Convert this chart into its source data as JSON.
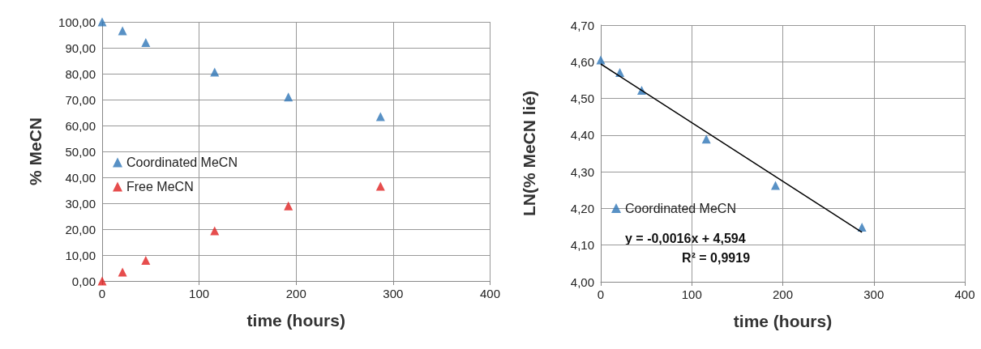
{
  "chart_data": [
    {
      "type": "scatter",
      "xlabel": "time (hours)",
      "ylabel": "% MeCN",
      "xlim": [
        0,
        400
      ],
      "xticks": [
        0,
        100,
        200,
        300,
        400
      ],
      "ylim": [
        0,
        100
      ],
      "yticks": [
        {
          "value": 0,
          "label": "0,00"
        },
        {
          "value": 10,
          "label": "10,00"
        },
        {
          "value": 20,
          "label": "20,00"
        },
        {
          "value": 30,
          "label": "30,00"
        },
        {
          "value": 40,
          "label": "40,00"
        },
        {
          "value": 50,
          "label": "50,00"
        },
        {
          "value": 60,
          "label": "60,00"
        },
        {
          "value": 70,
          "label": "70,00"
        },
        {
          "value": 80,
          "label": "80,00"
        },
        {
          "value": 90,
          "label": "90,00"
        },
        {
          "value": 100,
          "label": "100,00"
        }
      ],
      "x": [
        0,
        21,
        45,
        116,
        192,
        287
      ],
      "series": [
        {
          "name": "Coordinated MeCN",
          "color": "#2e75b6",
          "values": [
            100,
            96.6,
            92,
            80.6,
            71,
            63.4
          ]
        },
        {
          "name": "Free MeCN",
          "color": "#e02020",
          "values": [
            0,
            3.4,
            8,
            19.4,
            29,
            36.6
          ]
        }
      ],
      "marker": "triangle",
      "grid": true,
      "legend": "left"
    },
    {
      "type": "scatter",
      "xlabel": "time (hours)",
      "ylabel": "LN(% MeCN lié)",
      "xlim": [
        0,
        400
      ],
      "xticks": [
        0,
        100,
        200,
        300,
        400
      ],
      "ylim": [
        4,
        4.7
      ],
      "yticks": [
        {
          "value": 4,
          "label": "4,00"
        },
        {
          "value": 4.1,
          "label": "4,10"
        },
        {
          "value": 4.2,
          "label": "4,20"
        },
        {
          "value": 4.3,
          "label": "4,30"
        },
        {
          "value": 4.4,
          "label": "4,40"
        },
        {
          "value": 4.5,
          "label": "4,50"
        },
        {
          "value": 4.6,
          "label": "4,60"
        },
        {
          "value": 4.7,
          "label": "4,70"
        }
      ],
      "x": [
        0,
        21,
        45,
        116,
        192,
        287
      ],
      "series": [
        {
          "name": "Coordinated MeCN",
          "color": "#2e75b6",
          "values": [
            4.605,
            4.571,
            4.522,
            4.389,
            4.263,
            4.149
          ]
        },
        {
          "type": "line",
          "color": "#000000",
          "x": [
            0,
            287
          ],
          "values": [
            4.594,
            4.135
          ],
          "marker": "none"
        }
      ],
      "marker": "triangle",
      "grid": true,
      "legend": "bottom left",
      "annotations": [
        "y = -0,0016x + 4,594",
        "R² = 0,9919"
      ]
    }
  ]
}
